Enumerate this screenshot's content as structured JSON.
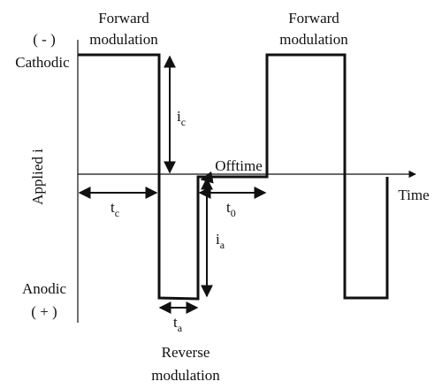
{
  "labels": {
    "forward_left": [
      "Forward",
      "modulation"
    ],
    "forward_right": [
      "Forward",
      "modulation"
    ],
    "cathodic_sign": "( - )",
    "cathodic": "Cathodic",
    "anodic": "Anodic",
    "anodic_sign": "( + )",
    "y_axis": "Applied i",
    "x_axis": "Time",
    "offtime": "Offtime",
    "reverse": [
      "Reverse",
      "modulation"
    ],
    "ic": {
      "main": "i",
      "sub": "c"
    },
    "ia": {
      "main": "i",
      "sub": "a"
    },
    "tc": {
      "main": "t",
      "sub": "c"
    },
    "ta": {
      "main": "t",
      "sub": "a"
    },
    "t0": {
      "main": "t",
      "sub": "0"
    }
  }
}
